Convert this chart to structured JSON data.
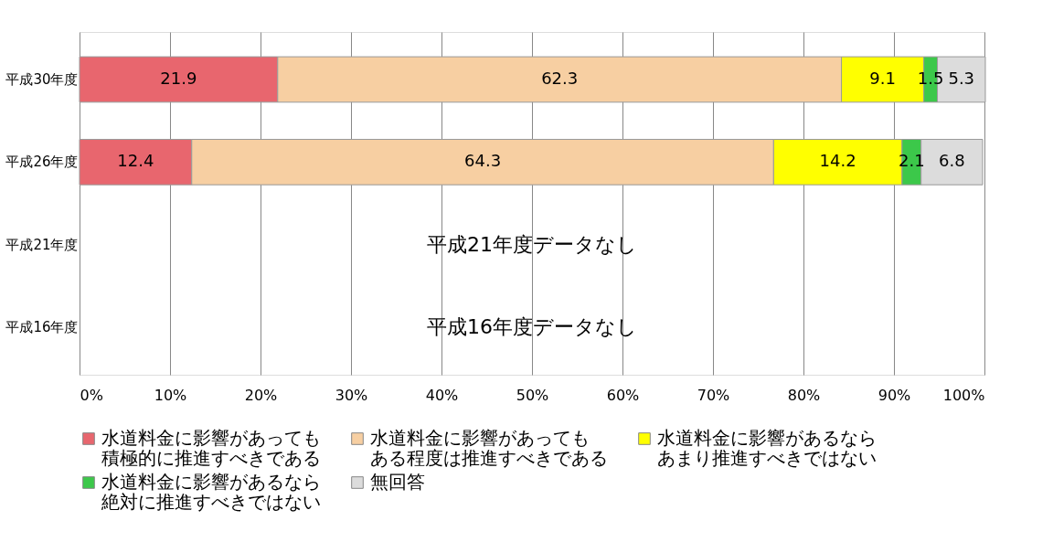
{
  "chart_data": {
    "type": "bar",
    "orientation": "horizontal",
    "stacked": true,
    "categories": [
      "平成30年度",
      "平成26年度",
      "平成21年度",
      "平成16年度"
    ],
    "series": [
      {
        "name": "水道料金に影響があっても積極的に推進すべきである",
        "color": "#e8666e",
        "values": [
          21.9,
          12.4,
          null,
          null
        ]
      },
      {
        "name": "水道料金に影響があってもある程度は推進すべきである",
        "color": "#f7cfa2",
        "values": [
          62.3,
          64.3,
          null,
          null
        ]
      },
      {
        "name": "水道料金に影響があるならあまり推進すべきではない",
        "color": "#ffff00",
        "values": [
          9.1,
          14.2,
          null,
          null
        ]
      },
      {
        "name": "水道料金に影響があるなら絶対に推進すべきではない",
        "color": "#3cc84a",
        "values": [
          1.5,
          2.1,
          null,
          null
        ]
      },
      {
        "name": "無回答",
        "color": "#dcdcdc",
        "values": [
          5.3,
          6.8,
          null,
          null
        ]
      }
    ],
    "xlim": [
      0,
      100
    ],
    "xticks": [
      {
        "value": 0,
        "label": "0%"
      },
      {
        "value": 10,
        "label": "10%"
      },
      {
        "value": 20,
        "label": "20%"
      },
      {
        "value": 30,
        "label": "30%"
      },
      {
        "value": 40,
        "label": "40%"
      },
      {
        "value": 50,
        "label": "50%"
      },
      {
        "value": 60,
        "label": "60%"
      },
      {
        "value": 70,
        "label": "70%"
      },
      {
        "value": 80,
        "label": "80%"
      },
      {
        "value": 90,
        "label": "90%"
      },
      {
        "value": 100,
        "label": "100%"
      }
    ],
    "data_labels": true,
    "grid": "x",
    "legend": "bottom",
    "annotations": [
      "平成21年度データなし",
      "平成16年度データなし"
    ]
  }
}
